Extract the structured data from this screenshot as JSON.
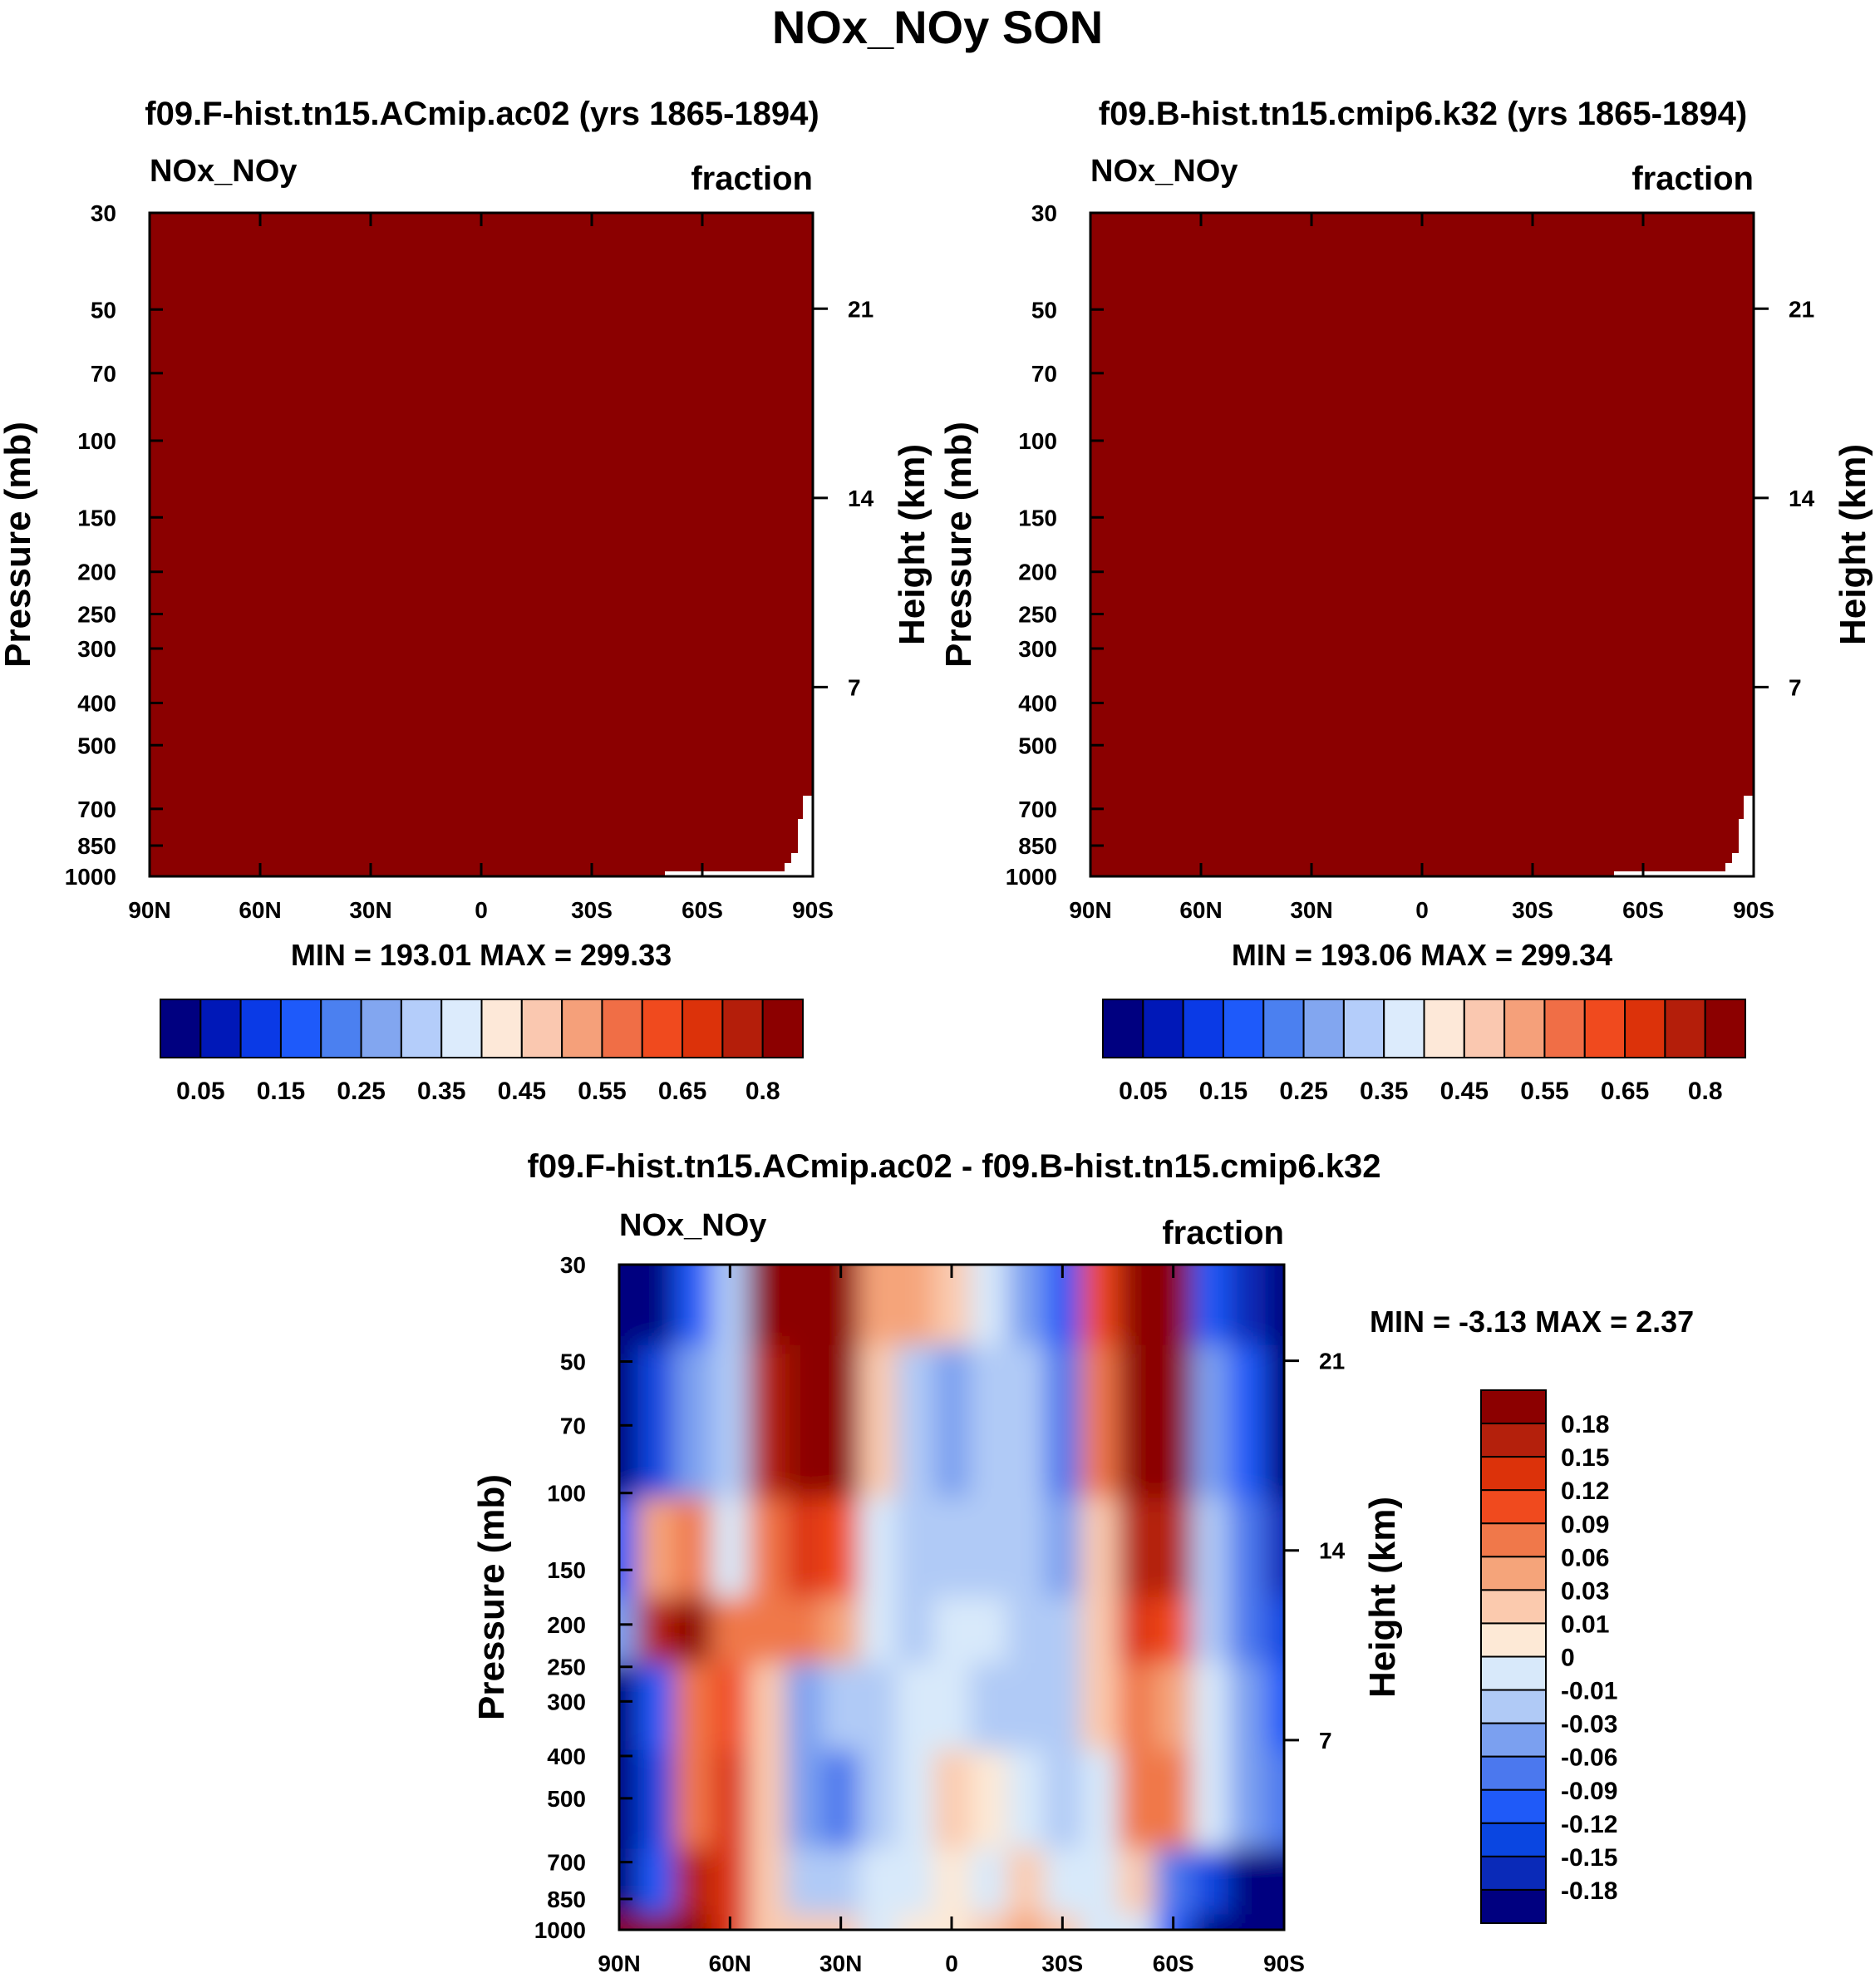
{
  "colors": {
    "sequential": [
      "#000080",
      "#0018b8",
      "#0a3ae6",
      "#1e5afa",
      "#4b80f0",
      "#82a6f0",
      "#b4cdfa",
      "#dcebfc",
      "#fde8d8",
      "#fac8b0",
      "#f5a07a",
      "#f06e46",
      "#f04a1e",
      "#dc320a",
      "#b41e0a",
      "#8c0000"
    ],
    "diverging": [
      "#000080",
      "#0a2ab8",
      "#0a46e1",
      "#1f5af8",
      "#4b78ee",
      "#7ba0f0",
      "#b0caf6",
      "#d8e9fa",
      "#fde9d6",
      "#fbcaae",
      "#f5a47a",
      "#f0784a",
      "#f04a1e",
      "#dc320a",
      "#b4200c",
      "#8c0000"
    ],
    "field_fill": "#8b0000"
  },
  "chart_data": [
    {
      "panel": "top-left",
      "type": "heatmap",
      "suptitle": "NOx_NOy SON",
      "title": "f09.F-hist.tn15.ACmip.ac02 (yrs 1865-1894)",
      "left_label": "NOx_NOy",
      "right_label": "fraction",
      "ylabel": "Pressure (mb)",
      "ylabel_right": "Height (km)",
      "x_ticks": [
        "90N",
        "60N",
        "30N",
        "0",
        "30S",
        "60S",
        "90S"
      ],
      "y_ticks": [
        "30",
        "50",
        "70",
        "100",
        "150",
        "200",
        "250",
        "300",
        "400",
        "500",
        "700",
        "850",
        "1000"
      ],
      "height_ticks": [
        "21",
        "14",
        "7"
      ],
      "min_max": "MIN = 193.01  MAX = 299.33",
      "colorbar_labels": [
        "0.05",
        "0.15",
        "0.25",
        "0.35",
        "0.45",
        "0.55",
        "0.65",
        "0.8"
      ],
      "note": "Field is uniformly in the top color class (>0.8) except missing data near 90S at 700-1000 mb."
    },
    {
      "panel": "top-right",
      "type": "heatmap",
      "title": "f09.B-hist.tn15.cmip6.k32 (yrs 1865-1894)",
      "left_label": "NOx_NOy",
      "right_label": "fraction",
      "ylabel": "Pressure (mb)",
      "ylabel_right": "Height (km)",
      "x_ticks": [
        "90N",
        "60N",
        "30N",
        "0",
        "30S",
        "60S",
        "90S"
      ],
      "y_ticks": [
        "30",
        "50",
        "70",
        "100",
        "150",
        "200",
        "250",
        "300",
        "400",
        "500",
        "700",
        "850",
        "1000"
      ],
      "height_ticks": [
        "21",
        "14",
        "7"
      ],
      "min_max": "MIN = 193.06  MAX = 299.34",
      "colorbar_labels": [
        "0.05",
        "0.15",
        "0.25",
        "0.35",
        "0.45",
        "0.55",
        "0.65",
        "0.8"
      ]
    },
    {
      "panel": "bottom",
      "type": "heatmap",
      "title": "f09.F-hist.tn15.ACmip.ac02 - f09.B-hist.tn15.cmip6.k32",
      "left_label": "NOx_NOy",
      "right_label": "fraction",
      "ylabel": "Pressure (mb)",
      "ylabel_right": "Height (km)",
      "x_ticks": [
        "90N",
        "60N",
        "30N",
        "0",
        "30S",
        "60S",
        "90S"
      ],
      "y_ticks": [
        "30",
        "50",
        "70",
        "100",
        "150",
        "200",
        "250",
        "300",
        "400",
        "500",
        "700",
        "850",
        "1000"
      ],
      "height_ticks": [
        "21",
        "14",
        "7"
      ],
      "min_max": "MIN =  -3.13  MAX =   2.37",
      "colorbar_labels": [
        "0.18",
        "0.15",
        "0.12",
        "0.09",
        "0.06",
        "0.03",
        "0.01",
        "0",
        "-0.01",
        "-0.03",
        "-0.06",
        "-0.09",
        "-0.12",
        "-0.15",
        "-0.18"
      ],
      "columns_lat": [
        90,
        80,
        70,
        60,
        50,
        40,
        30,
        20,
        10,
        0,
        -10,
        -20,
        -30,
        -40,
        -50,
        -60,
        -70,
        -80,
        -90
      ],
      "rows_p": [
        30,
        70,
        150,
        200,
        300,
        500,
        850,
        1000
      ],
      "anomaly_grid": [
        [
          -0.2,
          -0.2,
          -0.1,
          -0.03,
          0.2,
          0.2,
          0.2,
          0.03,
          0.03,
          0.01,
          -0.01,
          -0.06,
          -0.1,
          0.1,
          0.2,
          0.2,
          -0.1,
          -0.18,
          -0.2
        ],
        [
          -0.2,
          -0.15,
          -0.06,
          -0.02,
          0.15,
          0.2,
          0.2,
          0.01,
          -0.03,
          -0.06,
          -0.03,
          -0.03,
          -0.09,
          0.06,
          0.2,
          0.2,
          -0.06,
          -0.12,
          -0.2
        ],
        [
          -0.1,
          0.03,
          0.06,
          -0.01,
          0.06,
          0.12,
          0.09,
          -0.01,
          -0.03,
          -0.03,
          -0.03,
          -0.03,
          -0.06,
          0.01,
          0.15,
          0.15,
          -0.03,
          -0.09,
          -0.18
        ],
        [
          -0.06,
          0.15,
          0.2,
          0.06,
          0.06,
          0.06,
          0.03,
          -0.01,
          -0.03,
          -0.01,
          -0.01,
          -0.03,
          -0.03,
          0.01,
          0.12,
          0.1,
          -0.03,
          -0.09,
          -0.15
        ],
        [
          -0.2,
          -0.1,
          0.06,
          0.1,
          0.01,
          -0.06,
          -0.03,
          -0.03,
          -0.01,
          -0.01,
          -0.03,
          -0.03,
          -0.03,
          0.01,
          0.06,
          0.03,
          -0.01,
          -0.06,
          -0.12
        ],
        [
          -0.2,
          -0.15,
          0.06,
          0.12,
          0.01,
          -0.06,
          -0.09,
          -0.03,
          -0.01,
          0.01,
          0.0,
          -0.01,
          -0.03,
          -0.01,
          0.06,
          0.06,
          -0.01,
          -0.06,
          -0.09
        ],
        [
          -0.2,
          -0.1,
          0.15,
          0.12,
          0.01,
          -0.03,
          -0.03,
          -0.01,
          -0.01,
          0.0,
          -0.01,
          0.01,
          -0.01,
          -0.01,
          0.01,
          -0.09,
          -0.15,
          -0.2,
          -0.2
        ],
        [
          0.2,
          0.2,
          0.2,
          0.12,
          0.01,
          0.01,
          0.01,
          -0.01,
          0.0,
          0.0,
          0.01,
          0.03,
          0.01,
          -0.01,
          -0.01,
          -0.12,
          -0.2,
          -0.2,
          -0.2
        ]
      ]
    }
  ]
}
